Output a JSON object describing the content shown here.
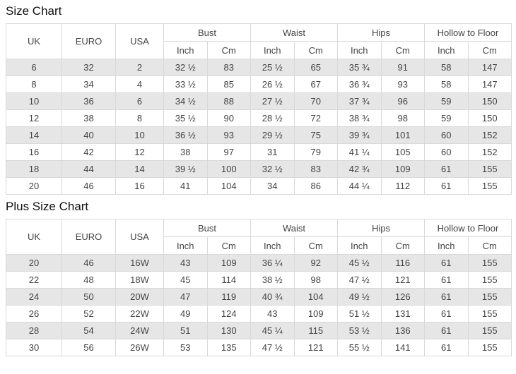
{
  "colors": {
    "row_stripe": "#e6e6e6",
    "border": "#d9d9d9",
    "cell_text": "#444444",
    "title_text": "#111111"
  },
  "tables": [
    {
      "title": "Size Chart",
      "plain_columns": [
        "UK",
        "EURO",
        "USA"
      ],
      "measurement_groups": [
        "Bust",
        "Waist",
        "Hips",
        "Hollow to Floor"
      ],
      "unit_columns": [
        "Inch",
        "Cm"
      ],
      "rows": [
        [
          "6",
          "32",
          "2",
          "32 ½",
          "83",
          "25 ½",
          "65",
          "35 ¾",
          "91",
          "58",
          "147"
        ],
        [
          "8",
          "34",
          "4",
          "33 ½",
          "85",
          "26 ½",
          "67",
          "36 ¾",
          "93",
          "58",
          "147"
        ],
        [
          "10",
          "36",
          "6",
          "34 ½",
          "88",
          "27 ½",
          "70",
          "37 ¾",
          "96",
          "59",
          "150"
        ],
        [
          "12",
          "38",
          "8",
          "35 ½",
          "90",
          "28 ½",
          "72",
          "38 ¾",
          "98",
          "59",
          "150"
        ],
        [
          "14",
          "40",
          "10",
          "36 ½",
          "93",
          "29 ½",
          "75",
          "39 ¾",
          "101",
          "60",
          "152"
        ],
        [
          "16",
          "42",
          "12",
          "38",
          "97",
          "31",
          "79",
          "41 ¼",
          "105",
          "60",
          "152"
        ],
        [
          "18",
          "44",
          "14",
          "39 ½",
          "100",
          "32 ½",
          "83",
          "42 ¾",
          "109",
          "61",
          "155"
        ],
        [
          "20",
          "46",
          "16",
          "41",
          "104",
          "34",
          "86",
          "44 ¼",
          "112",
          "61",
          "155"
        ]
      ]
    },
    {
      "title": "Plus Size Chart",
      "plain_columns": [
        "UK",
        "EURO",
        "USA"
      ],
      "measurement_groups": [
        "Bust",
        "Waist",
        "Hips",
        "Hollow to Floor"
      ],
      "unit_columns": [
        "Inch",
        "Cm"
      ],
      "rows": [
        [
          "20",
          "46",
          "16W",
          "43",
          "109",
          "36 ¼",
          "92",
          "45 ½",
          "116",
          "61",
          "155"
        ],
        [
          "22",
          "48",
          "18W",
          "45",
          "114",
          "38 ½",
          "98",
          "47 ½",
          "121",
          "61",
          "155"
        ],
        [
          "24",
          "50",
          "20W",
          "47",
          "119",
          "40 ¾",
          "104",
          "49 ½",
          "126",
          "61",
          "155"
        ],
        [
          "26",
          "52",
          "22W",
          "49",
          "124",
          "43",
          "109",
          "51 ½",
          "131",
          "61",
          "155"
        ],
        [
          "28",
          "54",
          "24W",
          "51",
          "130",
          "45 ¼",
          "115",
          "53 ½",
          "136",
          "61",
          "155"
        ],
        [
          "30",
          "56",
          "26W",
          "53",
          "135",
          "47 ½",
          "121",
          "55 ½",
          "141",
          "61",
          "155"
        ]
      ]
    }
  ]
}
